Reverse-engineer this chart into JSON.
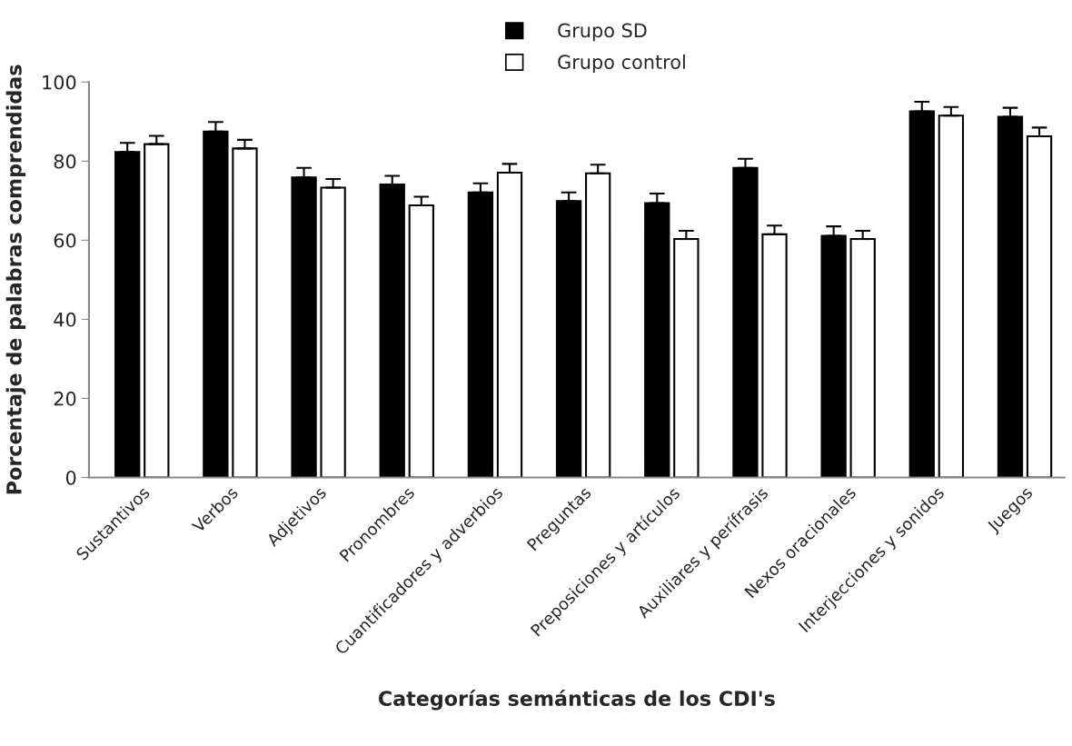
{
  "chart_data": {
    "type": "bar",
    "xlabel": "Categorías semánticas de los CDI's",
    "ylabel": "Porcentaje de palabras comprendidas",
    "categories": [
      "Sustantivos",
      "Verbos",
      "Adjetivos",
      "Pronombres",
      "Cuantificadores y adverbios",
      "Preguntas",
      "Preposiciones y artículos",
      "Auxiliares y perífrasis",
      "Nexos oracionales",
      "Interjecciones y sonidos",
      "Juegos"
    ],
    "series": [
      {
        "name": "Grupo SD",
        "color": "#000000",
        "values": [
          82.3,
          87.5,
          75.9,
          74.1,
          72.1,
          69.9,
          69.4,
          78.3,
          61.1,
          92.6,
          91.2
        ],
        "errors": [
          [
            82.3,
            84.6
          ],
          [
            87.5,
            89.9
          ],
          [
            75.9,
            78.3
          ],
          [
            74.1,
            76.3
          ],
          [
            72.1,
            74.4
          ],
          [
            69.9,
            72.1
          ],
          [
            69.4,
            71.8
          ],
          [
            78.3,
            80.6
          ],
          [
            61.1,
            63.5
          ],
          [
            92.6,
            95.0
          ],
          [
            91.2,
            93.5
          ]
        ]
      },
      {
        "name": "Grupo control",
        "color": "#ffffff",
        "values": [
          84.3,
          83.2,
          73.3,
          68.8,
          77.1,
          76.9,
          60.3,
          61.5,
          60.3,
          91.5,
          86.3
        ],
        "errors": [
          [
            84.3,
            86.4
          ],
          [
            83.2,
            85.4
          ],
          [
            73.3,
            75.5
          ],
          [
            68.8,
            71.0
          ],
          [
            77.1,
            79.3
          ],
          [
            76.9,
            79.1
          ],
          [
            60.3,
            62.4
          ],
          [
            61.5,
            63.7
          ],
          [
            60.3,
            62.4
          ],
          [
            91.5,
            93.7
          ],
          [
            86.3,
            88.5
          ]
        ]
      }
    ],
    "ylim": [
      0,
      100
    ],
    "yticks": [
      0,
      20,
      40,
      60,
      80,
      100
    ],
    "grid": false,
    "legend": "top"
  }
}
